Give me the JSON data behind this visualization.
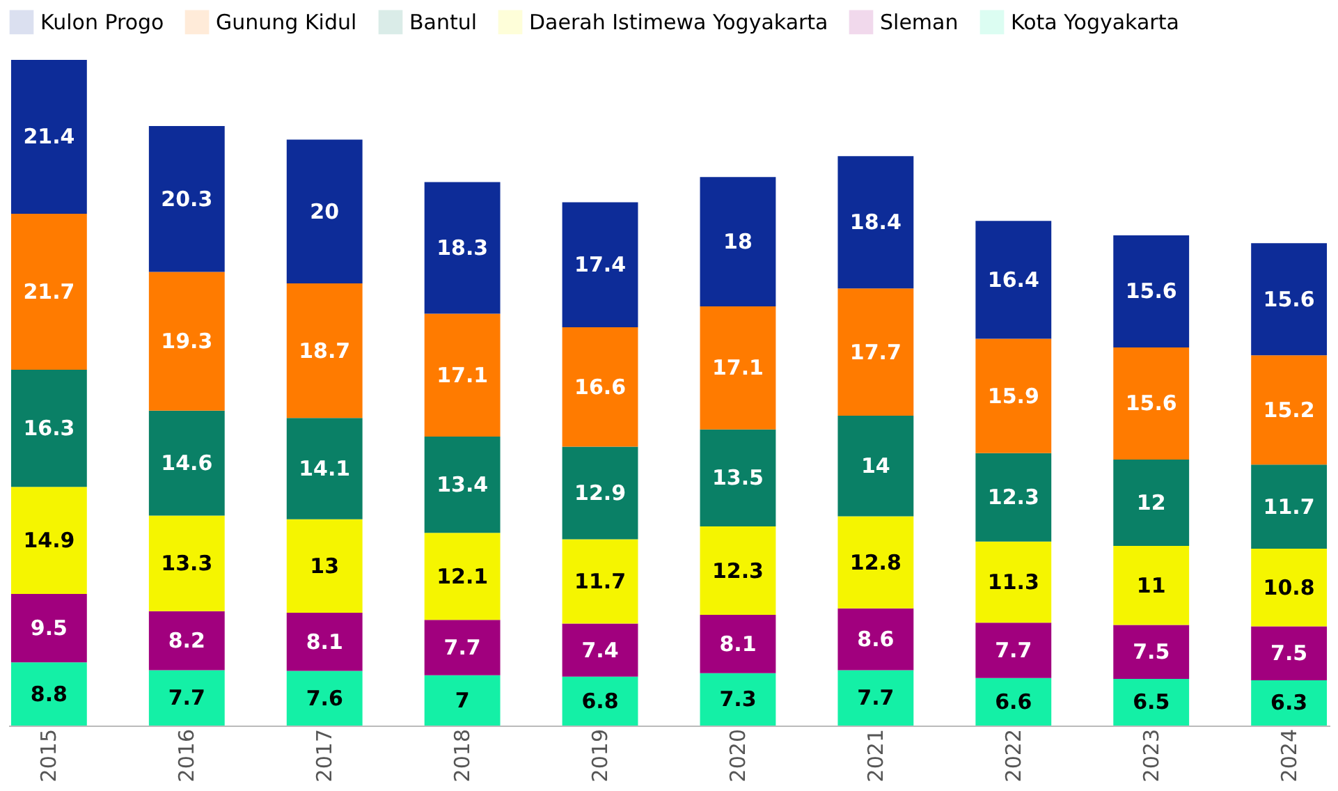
{
  "chart_data": {
    "type": "bar",
    "stacked": true,
    "data_labels": true,
    "tick_labels": "x",
    "legend": "top",
    "grid": false,
    "categories": [
      "2015",
      "2016",
      "2017",
      "2018",
      "2019",
      "2020",
      "2021",
      "2022",
      "2023",
      "2024"
    ],
    "series": [
      {
        "name": "Kota Yogyakarta",
        "color": "#14f0a6",
        "values": [
          8.8,
          7.7,
          7.6,
          7,
          6.8,
          7.3,
          7.7,
          6.6,
          6.5,
          6.3
        ]
      },
      {
        "name": "Sleman",
        "color": "#a1007e",
        "values": [
          9.5,
          8.2,
          8.1,
          7.7,
          7.4,
          8.1,
          8.6,
          7.7,
          7.5,
          7.5
        ]
      },
      {
        "name": "Daerah Istimewa Yogyakarta",
        "color": "#f5f500",
        "values": [
          14.9,
          13.3,
          13,
          12.1,
          11.7,
          12.3,
          12.8,
          11.3,
          11,
          10.8
        ]
      },
      {
        "name": "Bantul",
        "color": "#0a8066",
        "values": [
          16.3,
          14.6,
          14.1,
          13.4,
          12.9,
          13.5,
          14,
          12.3,
          12,
          11.7
        ]
      },
      {
        "name": "Gunung Kidul",
        "color": "#ff7b00",
        "values": [
          21.7,
          19.3,
          18.7,
          17.1,
          16.6,
          17.1,
          17.7,
          15.9,
          15.6,
          15.2
        ]
      },
      {
        "name": "Kulon Progo",
        "color": "#0d2c98",
        "values": [
          21.4,
          20.3,
          20,
          18.3,
          17.4,
          18,
          18.4,
          16.4,
          15.6,
          15.6
        ]
      }
    ]
  }
}
